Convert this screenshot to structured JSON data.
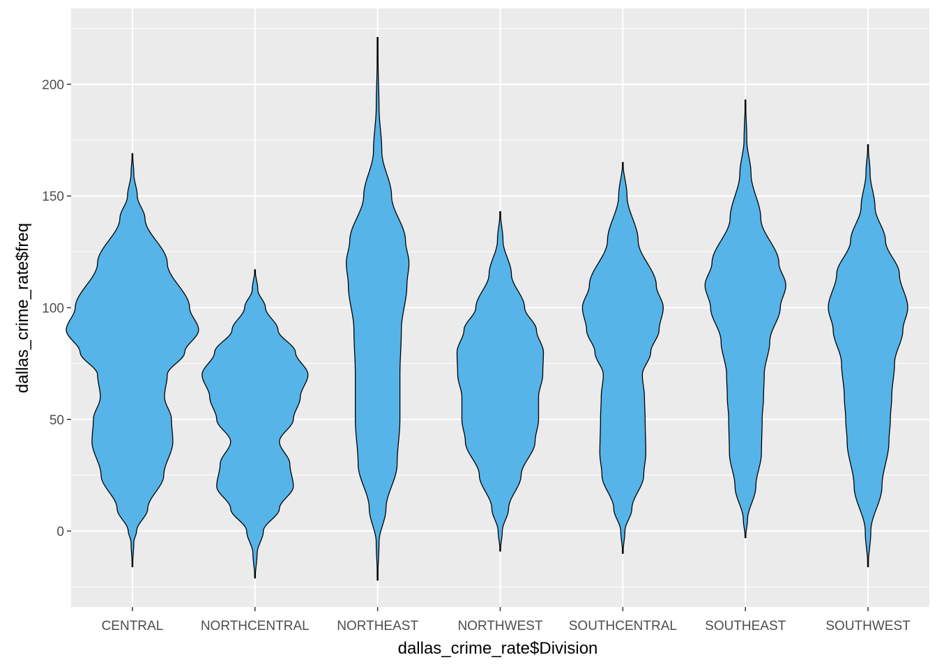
{
  "chart_data": {
    "type": "violin",
    "xlabel": "dallas_crime_rate$Division",
    "ylabel": "dallas_crime_rate$freq",
    "categories": [
      "CENTRAL",
      "NORTHCENTRAL",
      "NORTHEAST",
      "NORTHWEST",
      "SOUTHCENTRAL",
      "SOUTHEAST",
      "SOUTHWEST"
    ],
    "ylim": [
      -34,
      234
    ],
    "yticks": [
      0,
      50,
      100,
      150,
      200
    ],
    "ytick_labels": [
      "0",
      "50",
      "100",
      "150",
      "200"
    ],
    "fill_color": "#56B4E9",
    "outline_color": "#000000",
    "panel_background": "#EBEBEB",
    "grid": true,
    "legend": "none",
    "violins": [
      {
        "name": "CENTRAL",
        "min": -16,
        "max": 169,
        "profile": [
          [
            -16,
            0.2
          ],
          [
            -5,
            2
          ],
          [
            0,
            6
          ],
          [
            10,
            22
          ],
          [
            25,
            45
          ],
          [
            40,
            58
          ],
          [
            50,
            56
          ],
          [
            60,
            46
          ],
          [
            70,
            50
          ],
          [
            80,
            75
          ],
          [
            90,
            95
          ],
          [
            100,
            82
          ],
          [
            120,
            50
          ],
          [
            140,
            18
          ],
          [
            150,
            7
          ],
          [
            160,
            2
          ],
          [
            169,
            0.2
          ]
        ]
      },
      {
        "name": "NORTHCENTRAL",
        "min": -21,
        "max": 117,
        "profile": [
          [
            -21,
            0.3
          ],
          [
            -10,
            3
          ],
          [
            0,
            12
          ],
          [
            10,
            35
          ],
          [
            20,
            55
          ],
          [
            30,
            50
          ],
          [
            40,
            35
          ],
          [
            50,
            55
          ],
          [
            60,
            65
          ],
          [
            70,
            76
          ],
          [
            80,
            58
          ],
          [
            90,
            33
          ],
          [
            100,
            15
          ],
          [
            108,
            4
          ],
          [
            117,
            0.2
          ]
        ]
      },
      {
        "name": "NORTHEAST",
        "min": -22,
        "max": 221,
        "profile": [
          [
            -22,
            0.2
          ],
          [
            -5,
            2
          ],
          [
            10,
            12
          ],
          [
            30,
            28
          ],
          [
            50,
            32
          ],
          [
            70,
            32
          ],
          [
            90,
            34
          ],
          [
            110,
            42
          ],
          [
            120,
            45
          ],
          [
            130,
            40
          ],
          [
            150,
            20
          ],
          [
            170,
            6
          ],
          [
            190,
            2
          ],
          [
            210,
            0.7
          ],
          [
            221,
            0.2
          ]
        ]
      },
      {
        "name": "NORTHWEST",
        "min": -9,
        "max": 143,
        "profile": [
          [
            -9,
            0.2
          ],
          [
            0,
            3
          ],
          [
            10,
            12
          ],
          [
            25,
            30
          ],
          [
            40,
            50
          ],
          [
            50,
            55
          ],
          [
            60,
            55
          ],
          [
            70,
            61
          ],
          [
            80,
            62
          ],
          [
            90,
            52
          ],
          [
            100,
            35
          ],
          [
            115,
            16
          ],
          [
            130,
            4
          ],
          [
            143,
            0.2
          ]
        ]
      },
      {
        "name": "SOUTHCENTRAL",
        "min": -10,
        "max": 165,
        "profile": [
          [
            -10,
            0.2
          ],
          [
            0,
            3
          ],
          [
            10,
            13
          ],
          [
            25,
            30
          ],
          [
            35,
            33
          ],
          [
            50,
            32
          ],
          [
            60,
            31
          ],
          [
            70,
            28
          ],
          [
            80,
            40
          ],
          [
            90,
            52
          ],
          [
            100,
            58
          ],
          [
            110,
            48
          ],
          [
            130,
            22
          ],
          [
            150,
            6
          ],
          [
            165,
            0.2
          ]
        ]
      },
      {
        "name": "SOUTHEAST",
        "min": -3,
        "max": 193,
        "profile": [
          [
            -3,
            0.2
          ],
          [
            5,
            3
          ],
          [
            20,
            15
          ],
          [
            35,
            23
          ],
          [
            50,
            24
          ],
          [
            60,
            26
          ],
          [
            70,
            27
          ],
          [
            85,
            35
          ],
          [
            100,
            50
          ],
          [
            110,
            58
          ],
          [
            120,
            48
          ],
          [
            140,
            22
          ],
          [
            160,
            8
          ],
          [
            175,
            2
          ],
          [
            193,
            0.2
          ]
        ]
      },
      {
        "name": "SOUTHWEST",
        "min": -16,
        "max": 173,
        "profile": [
          [
            -16,
            0.2
          ],
          [
            0,
            4
          ],
          [
            20,
            20
          ],
          [
            40,
            30
          ],
          [
            50,
            32
          ],
          [
            60,
            34
          ],
          [
            75,
            38
          ],
          [
            90,
            50
          ],
          [
            100,
            57
          ],
          [
            115,
            45
          ],
          [
            130,
            25
          ],
          [
            145,
            10
          ],
          [
            160,
            3
          ],
          [
            173,
            0.2
          ]
        ]
      }
    ]
  }
}
